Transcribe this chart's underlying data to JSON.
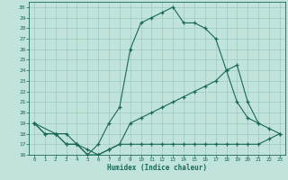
{
  "background_color": "#c0e4dc",
  "grid_color": "#a0c8c0",
  "line_color": "#1a6858",
  "xlabel": "Humidex (Indice chaleur)",
  "xlim": [
    -0.5,
    23.5
  ],
  "ylim": [
    16,
    30.5
  ],
  "yticks": [
    16,
    17,
    18,
    19,
    20,
    21,
    22,
    23,
    24,
    25,
    26,
    27,
    28,
    29,
    30
  ],
  "xticks": [
    0,
    1,
    2,
    3,
    4,
    5,
    6,
    7,
    8,
    9,
    10,
    11,
    12,
    13,
    14,
    15,
    16,
    17,
    18,
    19,
    20,
    21,
    22,
    23
  ],
  "line1_x": [
    0,
    1,
    2,
    3,
    4,
    5,
    6,
    7,
    8,
    9,
    10,
    11,
    12,
    13,
    14,
    15,
    16,
    17,
    18,
    19,
    20,
    21,
    22,
    23
  ],
  "line1_y": [
    19,
    18,
    18,
    17,
    17,
    16,
    16,
    16.5,
    17,
    17,
    17,
    17,
    17,
    17,
    17,
    17,
    17,
    17,
    17,
    17,
    17,
    17,
    17.5,
    18
  ],
  "line2_x": [
    0,
    1,
    2,
    3,
    4,
    5,
    6,
    7,
    8,
    9,
    10,
    11,
    12,
    13,
    14,
    15,
    16,
    17,
    18,
    19,
    20,
    21,
    22,
    23
  ],
  "line2_y": [
    19,
    18,
    18,
    17,
    17,
    16,
    17,
    19,
    20.5,
    26,
    28.5,
    29,
    29.5,
    30,
    28.5,
    28.5,
    28,
    27,
    24,
    21,
    19.5,
    19,
    18.5,
    18
  ],
  "line3_x": [
    0,
    2,
    3,
    4,
    5,
    6,
    7,
    8,
    9,
    10,
    11,
    12,
    13,
    14,
    15,
    16,
    17,
    18,
    19,
    20,
    21
  ],
  "line3_y": [
    19,
    18,
    18,
    17,
    16.5,
    16,
    16.5,
    17,
    19,
    19.5,
    20,
    20.5,
    21,
    21.5,
    22,
    22.5,
    23,
    24,
    24.5,
    21,
    19
  ]
}
